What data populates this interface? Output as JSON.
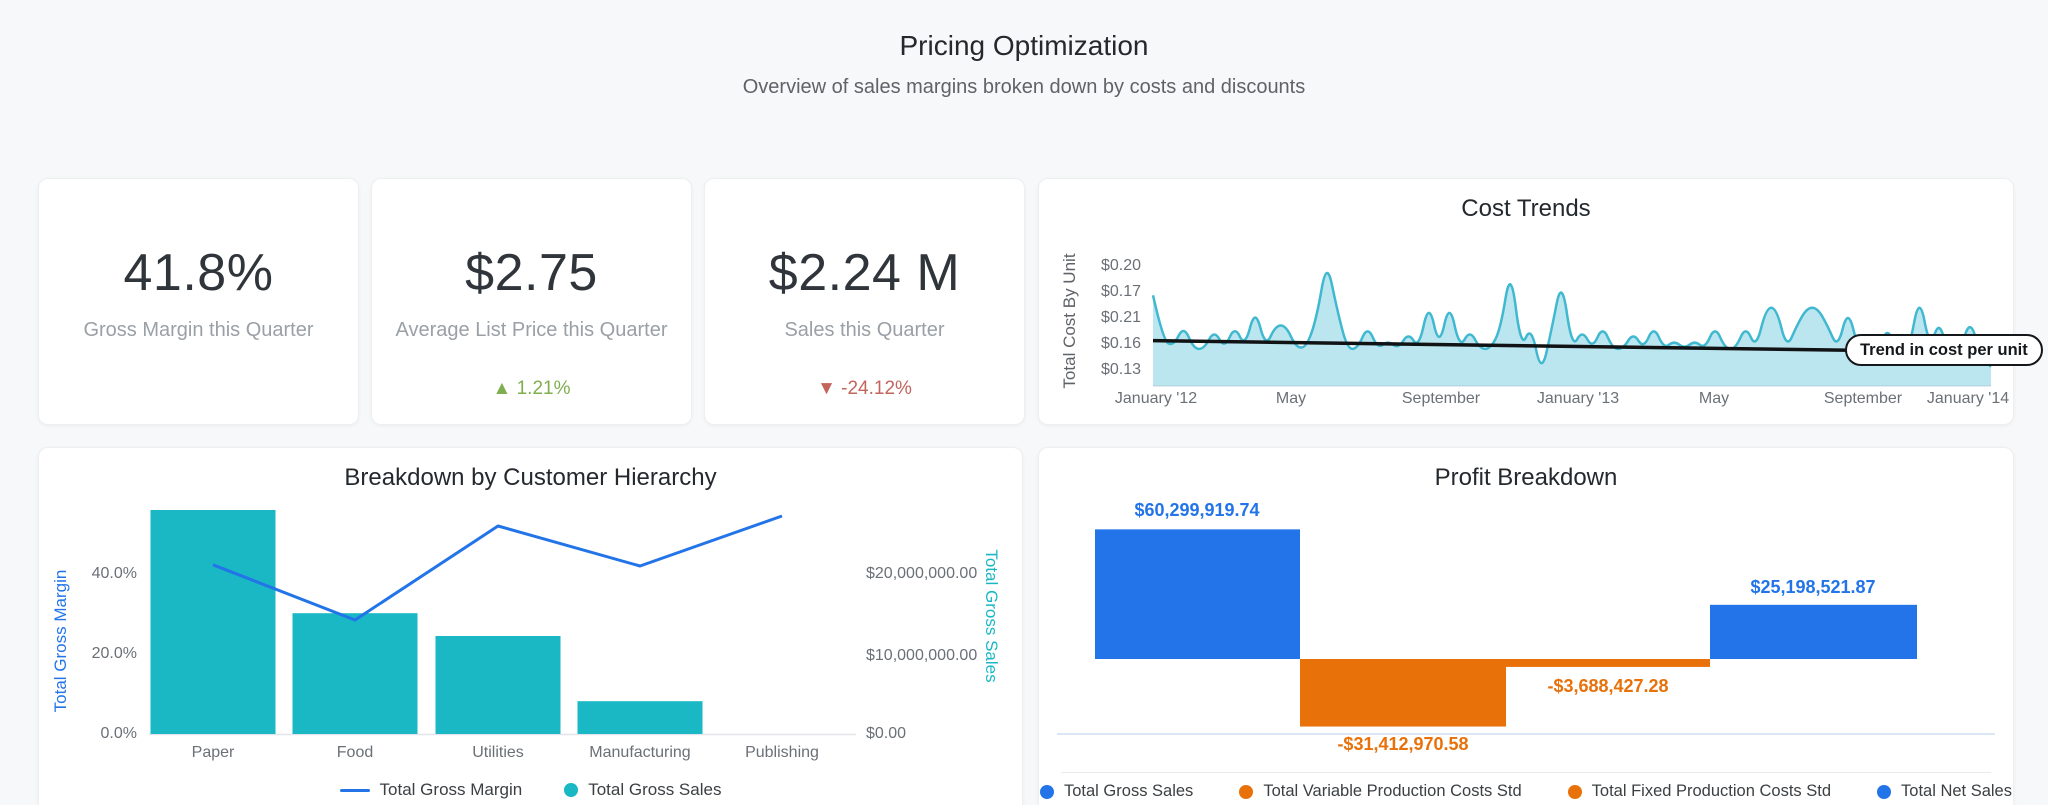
{
  "header": {
    "title": "Pricing Optimization",
    "subtitle": "Overview of sales margins broken down by costs and discounts"
  },
  "kpis": [
    {
      "value": "41.8%",
      "label": "Gross Margin this Quarter"
    },
    {
      "value": "$2.75",
      "label": "Average List Price this Quarter",
      "delta": {
        "dir": "up",
        "arrow": "▲",
        "text": "1.21%"
      }
    },
    {
      "value": "$2.24 M",
      "label": "Sales this Quarter",
      "delta": {
        "dir": "down",
        "arrow": "▼",
        "text": "-24.12%"
      }
    }
  ],
  "colors": {
    "blue": "#2274e8",
    "teal": "#1ab7c5",
    "orange": "#e8710a",
    "area_stroke": "#3fb8d0",
    "area_fill": "rgba(63,184,208,0.35)",
    "trend": "#101214",
    "green_delta": "#7fae4f",
    "red_delta": "#c2655c"
  },
  "chart_data": [
    {
      "type": "area",
      "title": "Cost Trends",
      "ylabel": "Total Cost By Unit",
      "yticks": [
        "$0.20",
        "$0.17",
        "$0.21",
        "$0.16",
        "$0.13"
      ],
      "xticks": [
        "January '12",
        "May",
        "September",
        "January '13",
        "May",
        "September",
        "January '14"
      ],
      "ylim": [
        0.119,
        0.226
      ],
      "annotation": "Trend in cost per unit",
      "trendline": {
        "start": 0.152,
        "end": 0.145
      },
      "values": [
        0.185,
        0.152,
        0.148,
        0.163,
        0.146,
        0.146,
        0.16,
        0.146,
        0.163,
        0.147,
        0.176,
        0.147,
        0.163,
        0.163,
        0.147,
        0.147,
        0.168,
        0.211,
        0.175,
        0.146,
        0.146,
        0.163,
        0.146,
        0.152,
        0.146,
        0.158,
        0.146,
        0.181,
        0.146,
        0.181,
        0.146,
        0.16,
        0.146,
        0.146,
        0.16,
        0.206,
        0.146,
        0.163,
        0.127,
        0.16,
        0.198,
        0.146,
        0.16,
        0.146,
        0.163,
        0.146,
        0.146,
        0.158,
        0.146,
        0.163,
        0.146,
        0.152,
        0.146,
        0.152,
        0.146,
        0.163,
        0.146,
        0.146,
        0.163,
        0.146,
        0.176,
        0.176,
        0.146,
        0.163,
        0.176,
        0.176,
        0.163,
        0.146,
        0.176,
        0.146,
        0.133,
        0.146,
        0.163,
        0.133,
        0.146,
        0.186,
        0.146,
        0.168,
        0.133,
        0.146,
        0.168,
        0.14,
        0.133
      ]
    },
    {
      "type": "bar",
      "title": "Breakdown by Customer Hierarchy",
      "categories": [
        "Paper",
        "Food",
        "Utilities",
        "Manufacturing",
        "Publishing"
      ],
      "bars": {
        "name": "Total Gross Sales",
        "values": [
          28000000,
          15100000,
          12250000,
          4100000,
          0
        ],
        "color": "#1ab7c5"
      },
      "line": {
        "name": "Total Gross Margin",
        "values": [
          42.3,
          28.5,
          52.0,
          42.0,
          54.5
        ],
        "color": "#2274e8"
      },
      "left_axis": {
        "label": "Total Gross Margin",
        "ticks": [
          "40.0%",
          "20.0%",
          "0.0%"
        ],
        "range_pct": [
          0,
          40
        ]
      },
      "right_axis": {
        "label": "Total Gross Sales",
        "ticks": [
          "$20,000,000.00",
          "$10,000,000.00",
          "$0.00"
        ],
        "range_usd": [
          0,
          20000000
        ]
      },
      "legend": [
        "Total Gross Margin",
        "Total Gross Sales"
      ]
    },
    {
      "type": "bar",
      "subtype": "waterfall",
      "title": "Profit Breakdown",
      "bars": [
        {
          "name": "Total Gross Sales",
          "label": "$60,299,919.74",
          "value": 60299919.74,
          "color": "#2274e8"
        },
        {
          "name": "Total Variable Production Costs Std",
          "label": "-$31,412,970.58",
          "value": -31412970.58,
          "color": "#e8710a"
        },
        {
          "name": "Total Fixed Production Costs Std",
          "label": "-$3,688,427.28",
          "value": -3688427.28,
          "color": "#e8710a"
        },
        {
          "name": "Total Net Sales",
          "label": "$25,198,521.87",
          "value": 25198521.87,
          "color": "#2274e8"
        }
      ],
      "legend": [
        {
          "label": "Total Gross Sales",
          "color": "#2274e8"
        },
        {
          "label": "Total Variable Production Costs Std",
          "color": "#e8710a"
        },
        {
          "label": "Total Fixed Production Costs Std",
          "color": "#e8710a"
        },
        {
          "label": "Total Net Sales",
          "color": "#2274e8"
        }
      ]
    }
  ]
}
